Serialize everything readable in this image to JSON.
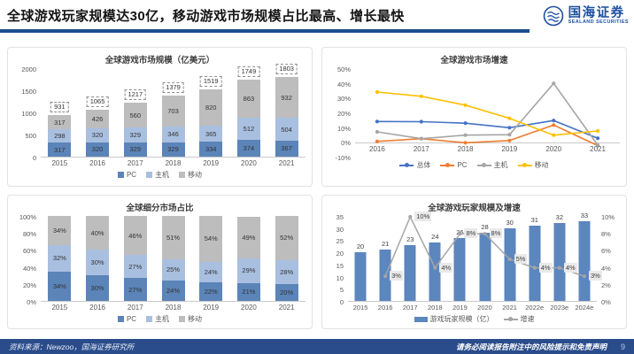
{
  "header": {
    "title": "全球游戏玩家规模达30亿，移动游戏市场规模占比最高、增长最快",
    "logo": {
      "name_cn": "国海证券",
      "name_en": "SEALAND SECURITIES"
    }
  },
  "colors": {
    "accent_navy": "#1e4c8f",
    "footer_navy": "#2a4c8b"
  },
  "chart_data": [
    {
      "type": "bar",
      "stacked": true,
      "title": "全球游戏市场规模（亿美元）",
      "categories": [
        "2015",
        "2016",
        "2017",
        "2018",
        "2019",
        "2020",
        "2021"
      ],
      "series": [
        {
          "name": "PC",
          "color": "#5b84b8",
          "values": [
            317,
            320,
            329,
            329,
            334,
            374,
            367
          ]
        },
        {
          "name": "主机",
          "color": "#a9bfe0",
          "values": [
            298,
            320,
            329,
            346,
            365,
            512,
            504
          ]
        },
        {
          "name": "移动",
          "color": "#bdbdbd",
          "values": [
            317,
            426,
            560,
            703,
            820,
            863,
            932
          ]
        }
      ],
      "totals": [
        931,
        1065,
        1217,
        1379,
        1519,
        1749,
        1803
      ],
      "ylim": [
        0,
        2000
      ],
      "yticks": [
        "2000",
        "1500",
        "1000",
        "500",
        "0"
      ],
      "grid": false,
      "legend_position": "bottom"
    },
    {
      "type": "line",
      "title": "全球游戏市场增速",
      "categories": [
        "2016",
        "2017",
        "2018",
        "2019",
        "2020",
        "2021"
      ],
      "series": [
        {
          "name": "总体",
          "color": "#4472c4",
          "values": [
            14.4,
            14.3,
            13.3,
            10.2,
            15.1,
            3.1
          ]
        },
        {
          "name": "PC",
          "color": "#ed7d31",
          "values": [
            0.9,
            2.8,
            0,
            1.5,
            12,
            -1.9
          ]
        },
        {
          "name": "主机",
          "color": "#a5a5a5",
          "values": [
            7.4,
            2.8,
            5.2,
            5.5,
            40.3,
            -1.6
          ]
        },
        {
          "name": "移动",
          "color": "#ffc000",
          "values": [
            34.4,
            31.5,
            25.5,
            16.6,
            5.2,
            8
          ]
        }
      ],
      "ylim": [
        -10,
        50
      ],
      "yticks": [
        "50%",
        "40%",
        "30%",
        "20%",
        "10%",
        "0%",
        "-10%"
      ],
      "grid": false,
      "legend_position": "bottom"
    },
    {
      "type": "bar",
      "stacked": true,
      "percent": true,
      "title": "全球细分市场占比",
      "categories": [
        "2015",
        "2016",
        "2017",
        "2018",
        "2019",
        "2020",
        "2021"
      ],
      "series": [
        {
          "name": "PC",
          "color": "#5b84b8",
          "values": [
            34,
            30,
            27,
            24,
            22,
            21,
            20
          ]
        },
        {
          "name": "主机",
          "color": "#a9bfe0",
          "values": [
            32,
            30,
            27,
            25,
            24,
            29,
            28
          ]
        },
        {
          "name": "移动",
          "color": "#bdbdbd",
          "values": [
            34,
            40,
            46,
            51,
            54,
            49,
            52
          ]
        }
      ],
      "ylim": [
        0,
        100
      ],
      "yticks": [
        "100%",
        "80%",
        "60%",
        "40%",
        "20%",
        "0%"
      ],
      "grid": false,
      "legend_position": "bottom"
    },
    {
      "type": "combo",
      "title": "全球游戏玩家规模及增速",
      "categories": [
        "2015",
        "2016",
        "2017",
        "2018",
        "2019",
        "2020",
        "2021",
        "2022e",
        "2023e",
        "2024e"
      ],
      "bar_series": {
        "name": "游戏玩家规模（亿）",
        "color": "#5b86be",
        "values": [
          20,
          21,
          23,
          24,
          26,
          28,
          30,
          31,
          32,
          33
        ]
      },
      "line_series": {
        "name": "增速",
        "color": "#a5a5a5",
        "values": [
          null,
          3,
          10,
          4,
          8,
          8,
          5,
          4,
          4,
          3
        ],
        "labels": [
          "",
          "3%",
          "10%",
          "4%",
          "8%",
          "8%",
          "5%",
          "4%",
          "4%",
          "3%"
        ]
      },
      "ylim_left": [
        0,
        35
      ],
      "yticks_left": [
        "35",
        "30",
        "25",
        "20",
        "15",
        "10",
        "5",
        "0"
      ],
      "ylim_right": [
        0,
        10
      ],
      "yticks_right": [
        "10%",
        "8%",
        "6%",
        "4%",
        "2%",
        "0%"
      ],
      "grid": false,
      "legend_position": "bottom"
    }
  ],
  "footer": {
    "source": "资料来源：Newzoo，国海证券研究所",
    "disclaimer": "请务必阅读报告附注中的风险提示和免责声明",
    "page": "9"
  }
}
